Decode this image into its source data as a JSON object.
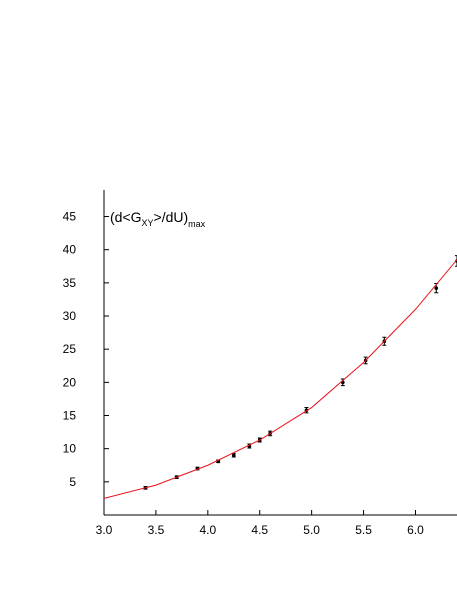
{
  "chart_data": {
    "type": "scatter",
    "y_label_parts": [
      "(d<G",
      "XY",
      ">/dU)",
      "max"
    ],
    "series": [
      {
        "color": "#000000",
        "mode": "points",
        "x": [
          3.4,
          3.7,
          3.9,
          4.1,
          4.25,
          4.4,
          4.5,
          4.6,
          4.95,
          5.3,
          5.52,
          5.7,
          6.2,
          6.4
        ],
        "values": [
          4.1,
          5.7,
          7.0,
          8.1,
          9.0,
          10.4,
          11.3,
          12.3,
          15.8,
          20.0,
          23.3,
          26.2,
          34.2,
          38.3
        ],
        "errors": [
          0.2,
          0.2,
          0.2,
          0.2,
          0.25,
          0.3,
          0.3,
          0.35,
          0.4,
          0.5,
          0.5,
          0.6,
          0.7,
          0.8
        ]
      },
      {
        "color": "#e8131b",
        "mode": "line",
        "x": [
          3.0,
          3.5,
          4.0,
          4.5,
          5.0,
          5.5,
          6.0,
          6.4
        ],
        "values": [
          2.5,
          4.5,
          7.5,
          11.3,
          16.2,
          23.0,
          31.0,
          38.5
        ]
      }
    ],
    "xlim": [
      3.0,
      6.4
    ],
    "xticks": [
      {
        "value": 3.0,
        "label": "3.0"
      },
      3.5,
      {
        "value": 4.0,
        "label": "4.0"
      },
      4.5,
      {
        "value": 5.0,
        "label": "5.0"
      },
      5.5,
      {
        "value": 6.0,
        "label": "6.0"
      }
    ],
    "ylim": [
      0,
      49
    ],
    "yticks": [
      5,
      10,
      15,
      20,
      25,
      30,
      35,
      40,
      45
    ],
    "grid": false
  }
}
